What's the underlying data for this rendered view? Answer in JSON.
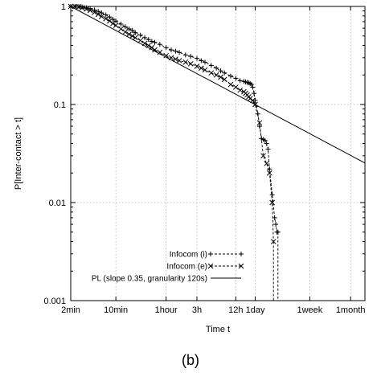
{
  "panel_label": "(b)",
  "chart_data": {
    "type": "line",
    "xlabel": "Time t",
    "ylabel": "P[Inter-contact > t]",
    "x_scale": "log",
    "y_scale": "log",
    "xlim_seconds": [
      120,
      4320000
    ],
    "ylim": [
      0.001,
      1
    ],
    "grid": true,
    "legend_position": "bottom-right",
    "x_ticks": [
      {
        "label": "2min",
        "seconds": 120
      },
      {
        "label": "10min",
        "seconds": 600
      },
      {
        "label": "1hour",
        "seconds": 3600
      },
      {
        "label": "3h",
        "seconds": 10800
      },
      {
        "label": "12h",
        "seconds": 43200
      },
      {
        "label": "1day",
        "seconds": 86400
      },
      {
        "label": "1week",
        "seconds": 604800
      },
      {
        "label": "1month",
        "seconds": 2592000
      }
    ],
    "y_ticks": [
      {
        "label": "1",
        "value": 1
      },
      {
        "label": "0.1",
        "value": 0.1
      },
      {
        "label": "0.01",
        "value": 0.01
      },
      {
        "label": "0.001",
        "value": 0.001
      }
    ],
    "series": [
      {
        "name": "Infocom (i)",
        "style": "dashed",
        "marker": "plus",
        "color": "#000000",
        "x_seconds": [
          120,
          140,
          160,
          180,
          210,
          240,
          280,
          320,
          360,
          420,
          480,
          540,
          600,
          720,
          840,
          960,
          1080,
          1200,
          1440,
          1680,
          1920,
          2160,
          2400,
          2880,
          3600,
          4320,
          5040,
          5760,
          7200,
          8640,
          10800,
          12600,
          14400,
          18000,
          21600,
          25200,
          28800,
          36000,
          43200,
          50400,
          57600,
          61200,
          64800,
          68400,
          72000,
          75600,
          79200,
          82800,
          86400,
          95000,
          100800,
          108000,
          115200,
          122400,
          129600,
          136800,
          144000,
          158400,
          172800,
          180000,
          187200,
          194400
        ],
        "y": [
          1.0,
          1.0,
          1.0,
          0.99,
          0.97,
          0.95,
          0.92,
          0.89,
          0.86,
          0.82,
          0.78,
          0.74,
          0.71,
          0.66,
          0.62,
          0.59,
          0.57,
          0.54,
          0.51,
          0.48,
          0.46,
          0.44,
          0.43,
          0.41,
          0.38,
          0.36,
          0.35,
          0.34,
          0.32,
          0.31,
          0.295,
          0.28,
          0.27,
          0.25,
          0.235,
          0.22,
          0.21,
          0.195,
          0.185,
          0.175,
          0.172,
          0.17,
          0.168,
          0.166,
          0.164,
          0.16,
          0.15,
          0.13,
          0.11,
          0.08,
          0.06,
          0.045,
          0.044,
          0.043,
          0.04,
          0.035,
          0.022,
          0.012,
          0.007,
          0.006,
          0.005,
          0.005
        ]
      },
      {
        "name": "Infocom (e)",
        "style": "dashed",
        "marker": "cross",
        "color": "#000000",
        "x_seconds": [
          120,
          140,
          160,
          180,
          210,
          240,
          280,
          320,
          360,
          420,
          480,
          540,
          600,
          720,
          840,
          960,
          1080,
          1200,
          1440,
          1680,
          1920,
          2160,
          2400,
          2880,
          3600,
          4320,
          5040,
          5760,
          7200,
          8640,
          10800,
          12600,
          14400,
          18000,
          21600,
          25200,
          28800,
          36000,
          43200,
          50400,
          57600,
          61200,
          64800,
          68400,
          72000,
          79200,
          86400,
          100800,
          115200,
          129600,
          144000,
          158400,
          165600
        ],
        "y": [
          1.0,
          1.0,
          0.99,
          0.97,
          0.94,
          0.91,
          0.87,
          0.83,
          0.79,
          0.75,
          0.71,
          0.67,
          0.64,
          0.59,
          0.55,
          0.52,
          0.5,
          0.48,
          0.45,
          0.42,
          0.4,
          0.38,
          0.36,
          0.34,
          0.315,
          0.3,
          0.29,
          0.28,
          0.27,
          0.26,
          0.245,
          0.235,
          0.225,
          0.21,
          0.2,
          0.19,
          0.18,
          0.16,
          0.15,
          0.14,
          0.135,
          0.13,
          0.125,
          0.12,
          0.115,
          0.11,
          0.1,
          0.065,
          0.03,
          0.025,
          0.02,
          0.01,
          0.004
        ]
      },
      {
        "name": "PL (slope 0.35, granularity 120s)",
        "style": "solid",
        "marker": "none",
        "color": "#000000",
        "x_seconds": [
          120,
          4320000
        ],
        "y": [
          1.0,
          0.0253
        ]
      }
    ]
  }
}
